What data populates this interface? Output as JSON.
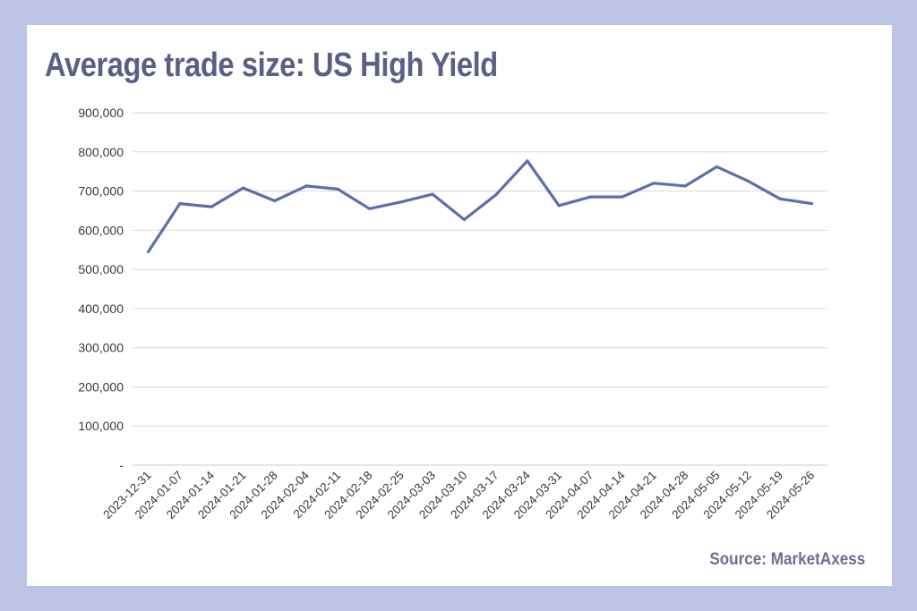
{
  "title": "Average trade size: US High Yield",
  "source": "Source: MarketAxess",
  "colors": {
    "background": "#bcc3e4",
    "card": "#ffffff",
    "title": "#5b5f86",
    "line": "#5a6fae",
    "grid": "#d9d9d9"
  },
  "chart_data": {
    "type": "line",
    "title": "Average trade size: US High Yield",
    "xlabel": "",
    "ylabel": "",
    "ylim": [
      0,
      900000
    ],
    "yticks": [
      0,
      100000,
      200000,
      300000,
      400000,
      500000,
      600000,
      700000,
      800000,
      900000
    ],
    "ytick_labels": [
      "-",
      "100,000",
      "200,000",
      "300,000",
      "400,000",
      "500,000",
      "600,000",
      "700,000",
      "800,000",
      "900,000"
    ],
    "grid": true,
    "legend": "none",
    "categories": [
      "2023-12-31",
      "2024-01-07",
      "2024-01-14",
      "2024-01-21",
      "2024-01-28",
      "2024-02-04",
      "2024-02-11",
      "2024-02-18",
      "2024-02-25",
      "2024-03-03",
      "2024-03-10",
      "2024-03-17",
      "2024-03-24",
      "2024-03-31",
      "2024-04-07",
      "2024-04-14",
      "2024-04-21",
      "2024-04-28",
      "2024-05-05",
      "2024-05-12",
      "2024-05-19",
      "2024-05-26"
    ],
    "series": [
      {
        "values": [
          545000,
          668000,
          660000,
          708000,
          675000,
          713000,
          705000,
          655000,
          672000,
          692000,
          627000,
          690000,
          777000,
          663000,
          685000,
          685000,
          720000,
          713000,
          762000,
          725000,
          680000,
          668000
        ]
      }
    ]
  }
}
